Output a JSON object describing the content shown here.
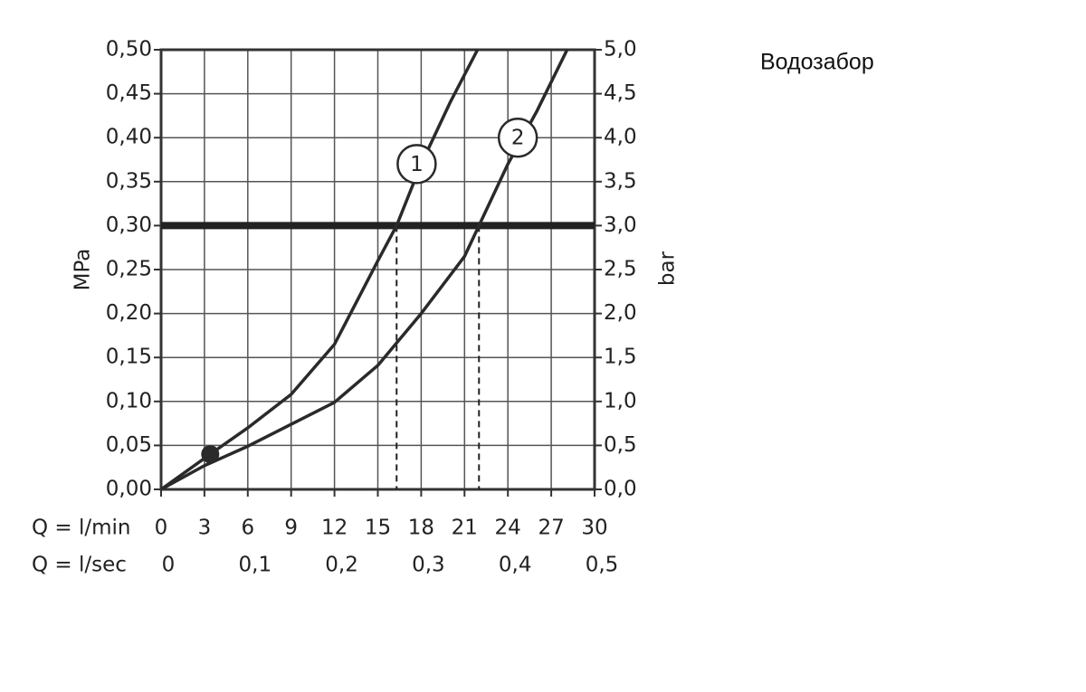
{
  "chart_data": {
    "type": "line",
    "subtitle": "Водозабор",
    "xlabel": "Q = l/min",
    "x2label": "Q = l/sec",
    "ylabel": "MPa",
    "y2label": "bar",
    "xlim": [
      0,
      30
    ],
    "xticks": [
      0,
      3,
      6,
      9,
      12,
      15,
      18,
      21,
      24,
      27,
      30
    ],
    "x2lim": [
      0,
      0.5
    ],
    "x2ticks": [
      {
        "value": 0,
        "label": "0"
      },
      {
        "value": 0.1,
        "label": "0,1"
      },
      {
        "value": 0.2,
        "label": "0,2"
      },
      {
        "value": 0.3,
        "label": "0,3"
      },
      {
        "value": 0.4,
        "label": "0,4"
      },
      {
        "value": 0.5,
        "label": "0,5"
      }
    ],
    "ylim": [
      0,
      0.5
    ],
    "yticks": [
      {
        "value": 0,
        "label": "0,00"
      },
      {
        "value": 0.05,
        "label": "0,05"
      },
      {
        "value": 0.1,
        "label": "0,10"
      },
      {
        "value": 0.15,
        "label": "0,15"
      },
      {
        "value": 0.2,
        "label": "0,20"
      },
      {
        "value": 0.25,
        "label": "0,25"
      },
      {
        "value": 0.3,
        "label": "0,30"
      },
      {
        "value": 0.35,
        "label": "0,35"
      },
      {
        "value": 0.4,
        "label": "0,40"
      },
      {
        "value": 0.45,
        "label": "0,45"
      },
      {
        "value": 0.5,
        "label": "0,50"
      }
    ],
    "y2lim": [
      0,
      5
    ],
    "y2ticks": [
      {
        "value": 0,
        "label": "0,0"
      },
      {
        "value": 0.5,
        "label": "0,5"
      },
      {
        "value": 1,
        "label": "1,0"
      },
      {
        "value": 1.5,
        "label": "1,5"
      },
      {
        "value": 2,
        "label": "2,0"
      },
      {
        "value": 2.5,
        "label": "2,5"
      },
      {
        "value": 3,
        "label": "3,0"
      },
      {
        "value": 3.5,
        "label": "3,5"
      },
      {
        "value": 4,
        "label": "4,0"
      },
      {
        "value": 4.5,
        "label": "4,5"
      },
      {
        "value": 5,
        "label": "5,0"
      }
    ],
    "grid": true,
    "hline": 0.3,
    "dashed_x": [
      16.3,
      22
    ],
    "marker": {
      "x": 3.4,
      "y": 0.04
    },
    "series": [
      {
        "name": "1",
        "color": "#2a2a2a",
        "x": [
          0,
          3.4,
          6,
          9,
          12,
          15,
          16.3,
          18,
          20,
          21.9
        ],
        "values": [
          0,
          0.04,
          0.07,
          0.108,
          0.165,
          0.26,
          0.3,
          0.37,
          0.44,
          0.5
        ]
      },
      {
        "name": "2",
        "color": "#2a2a2a",
        "x": [
          0,
          3,
          6,
          9,
          12,
          15,
          18,
          21,
          22,
          24,
          25,
          26,
          28.1
        ],
        "values": [
          0,
          0.027,
          0.049,
          0.074,
          0.099,
          0.141,
          0.2,
          0.265,
          0.3,
          0.37,
          0.4,
          0.43,
          0.5
        ]
      }
    ]
  }
}
